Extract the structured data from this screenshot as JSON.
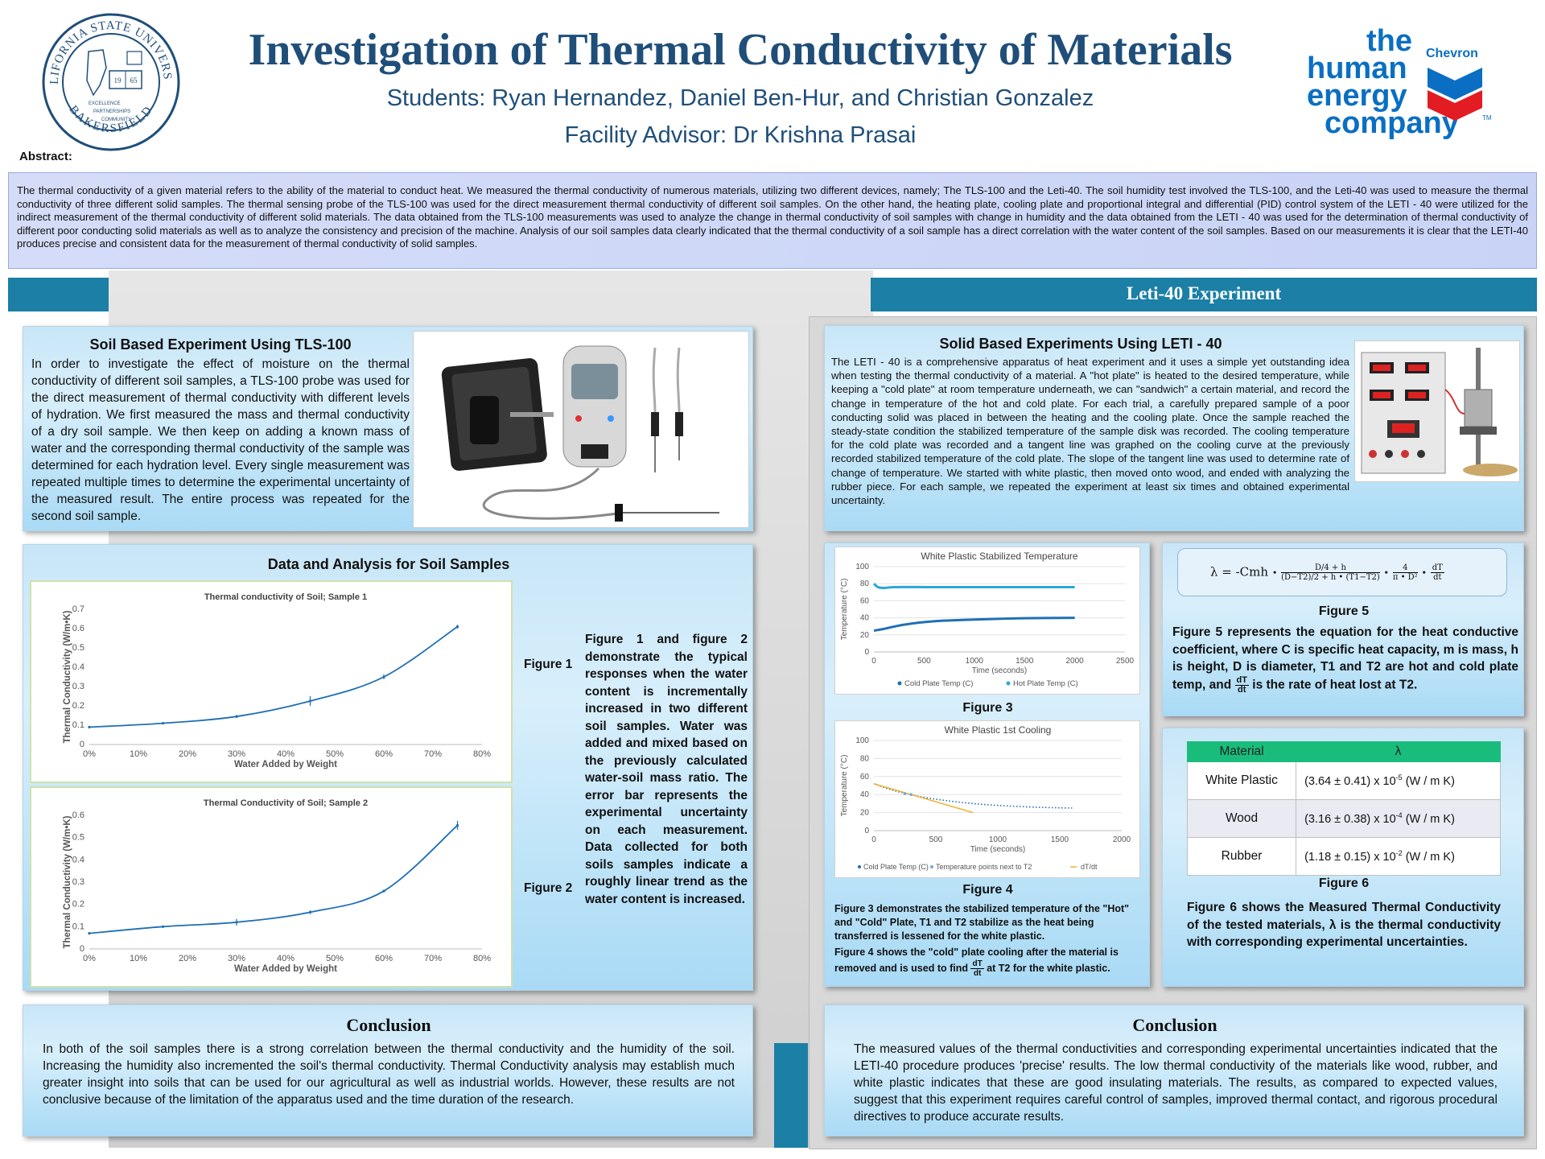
{
  "header": {
    "title": "Investigation of Thermal Conductivity of Materials",
    "students": "Students: Ryan Hernandez, Daniel Ben-Hur, and Christian Gonzalez",
    "advisor": "Facility Advisor: Dr Krishna Prasai",
    "logo_left": {
      "top": "CALIFORNIA STATE UNIVERSITY",
      "bottom": "BAKERSFIELD",
      "year1": "19",
      "year2": "65",
      "motto": [
        "EXCELLENCE",
        "PARTNERSHIPS",
        "COMMUNITY"
      ]
    },
    "logo_right": {
      "line1": "the",
      "line2": "human",
      "line3": "energy",
      "line4": "company",
      "brand": "Chevron",
      "tm": "TM"
    }
  },
  "abstract": {
    "label": "Abstract:",
    "text": "The thermal conductivity of a given material refers to the ability of the material to conduct heat. We measured the thermal conductivity of numerous materials, utilizing two different devices, namely; The TLS-100 and the Leti-40. The soil humidity test involved the TLS-100, and the Leti-40 was used to measure the thermal conductivity of three different solid samples. The thermal sensing probe of the TLS-100 was used for the direct measurement thermal conductivity of different soil samples. On the other hand, the heating plate, cooling plate and proportional integral and differential (PID) control system of the LETI - 40 were utilized for the indirect measurement of the thermal conductivity of different solid materials. The data obtained from the TLS-100 measurements was used to analyze the change in thermal conductivity of soil samples with change in humidity and the data obtained from the LETI - 40 was used for the determination of thermal conductivity of different poor conducting solid materials as well as to analyze the consistency and precision of the machine. Analysis of our soil samples data clearly indicated that the thermal conductivity of a soil sample has a direct correlation with the water content of the soil samples. Based on our measurements it is clear that the LETI-40 produces precise and consistent data for the measurement of thermal conductivity of solid samples."
  },
  "right_banner": "Leti-40 Experiment",
  "soil": {
    "title": "Soil Based Experiment Using TLS-100",
    "text": "In order to investigate the effect of moisture on the thermal conductivity of different soil samples, a TLS-100 probe was used for the direct measurement of thermal conductivity with different levels of hydration. We first measured the mass and thermal conductivity of a dry soil sample. We then keep on adding a known mass of water and the corresponding thermal conductivity of the sample was determined for each hydration level. Every single measurement was repeated multiple times to determine the experimental uncertainty of the measured result. The entire process was repeated for the second soil sample."
  },
  "soil_data": {
    "title": "Data and Analysis for Soil Samples",
    "fig1": "Figure 1",
    "fig2": "Figure 2",
    "description": "Figure 1 and figure 2 demonstrate the typical responses when the water content is incrementally increased in two different soil samples. Water was added and mixed based on the previously calculated water-soil mass ratio. The error bar represents the experimental uncertainty on each measurement. Data collected for both soils samples indicate a roughly linear trend as the water content is increased."
  },
  "leti": {
    "title": "Solid Based Experiments Using LETI - 40",
    "text": "The LETI - 40 is a comprehensive apparatus of heat experiment and it uses a simple yet outstanding idea when testing the thermal conductivity of a material. A \"hot plate\" is heated to the desired temperature, while keeping a \"cold plate\" at room temperature underneath, we can \"sandwich\" a certain material, and record the change in temperature of the hot and cold plate. For each trial, a carefully prepared sample of a poor conducting solid was placed in between the heating and the cooling plate. Once the sample reached the steady-state condition the stabilized temperature of the sample disk was recorded. The cooling temperature for the cold plate was recorded and a tangent line was graphed on the cooling curve at the previously recorded stabilized temperature of the cold plate. The slope of the tangent line was used to determine rate of change of temperature. We started with white plastic, then moved onto wood, and ended with analyzing the rubber piece. For each sample, we repeated the experiment at least six times and obtained experimental uncertainty."
  },
  "figs34": {
    "fig3": "Figure 3",
    "fig4": "Figure 4",
    "caption3": "Figure 3 demonstrates the stabilized temperature of the \"Hot\" and \"Cold\" Plate, T1 and T2 stabilize as the heat being transferred is lessened for the white plastic.",
    "caption4_a": "Figure 4 shows the \"cold\" plate cooling after the material is removed and is used to find",
    "caption4_b": "at T2 for the white plastic."
  },
  "fig5": {
    "label": "Figure 5",
    "equation_lead": "λ = -Cmh",
    "text_a": "Figure 5 represents the equation for the heat conductive coefficient, where C is specific heat capacity, m is mass, h is height, D is diameter, T1 and T2 are hot and cold plate temp, and",
    "text_b": "is the rate of heat lost at T2."
  },
  "fig6": {
    "label": "Figure 6",
    "headers": [
      "Material",
      "λ"
    ],
    "rows": [
      {
        "material": "White Plastic",
        "value": "(3.64 ± 0.41) x 10",
        "exp": "-5",
        "unit": " (W / m K)"
      },
      {
        "material": "Wood",
        "value": "(3.16 ± 0.38) x 10",
        "exp": "-4",
        "unit": " (W / m K)"
      },
      {
        "material": "Rubber",
        "value": "(1.18 ± 0.15) x 10",
        "exp": "-2",
        "unit": " (W / m K)"
      }
    ],
    "text": "Figure 6 shows the Measured Thermal Conductivity of the tested materials, λ is the thermal conductivity with corresponding experimental uncertainties."
  },
  "conclusion_left": {
    "title": "Conclusion",
    "text": "In both of the soil samples there is a strong correlation between the thermal conductivity and the humidity of the soil. Increasing the humidity also incremented the soil's thermal conductivity. Thermal Conductivity analysis may establish much greater insight into soils that can be used for our agricultural as well as industrial worlds. However, these results are not conclusive because of the limitation of the apparatus used and the time duration of the research."
  },
  "conclusion_right": {
    "title": "Conclusion",
    "text": "The measured values of the thermal conductivities and corresponding experimental uncertainties indicated that the LETI-40 procedure produces 'precise' results. The low thermal conductivity of the materials like wood, rubber, and white plastic indicates that these are good insulating materials. The results, as compared to expected values, suggest that this experiment requires careful control of samples, improved thermal contact, and rigorous procedural directives to produce accurate results."
  },
  "colors": {
    "title": "#1f4e79",
    "accent_bar": "#1b7fa6",
    "chevron_blue": "#0a6fc2",
    "chevron_red": "#e31b23",
    "table_header": "#1abc7c",
    "series_blue": "#1f6fb5",
    "series_teal": "#2aa8d8",
    "series_orange": "#f2b134"
  },
  "chart_data": [
    {
      "type": "line",
      "title": "Thermal conductivity of Soil; Sample 1",
      "xlabel": "Water Added by Weight",
      "ylabel": "Thermal Conductivity (W/m•K)",
      "xticks": [
        "0%",
        "10%",
        "20%",
        "30%",
        "40%",
        "50%",
        "60%",
        "70%",
        "80%"
      ],
      "yticks": [
        "0",
        "0.1",
        "0.2",
        "0.3",
        "0.4",
        "0.5",
        "0.6",
        "0.7"
      ],
      "xlim": [
        0,
        80
      ],
      "ylim": [
        0,
        0.7
      ],
      "x": [
        0,
        15,
        30,
        45,
        60,
        75
      ],
      "values": [
        0.09,
        0.11,
        0.145,
        0.225,
        0.35,
        0.61
      ],
      "errors": [
        0.005,
        0.005,
        0.008,
        0.025,
        0.012,
        0.01
      ]
    },
    {
      "type": "line",
      "title": "Thermal Conductivity of Soil; Sample 2",
      "xlabel": "Water Added by Weight",
      "ylabel": "Thermal Conductivity (W/m•K)",
      "xticks": [
        "0%",
        "10%",
        "20%",
        "30%",
        "40%",
        "50%",
        "60%",
        "70%",
        "80%"
      ],
      "yticks": [
        "0",
        "0.1",
        "0.2",
        "0.3",
        "0.4",
        "0.5",
        "0.6"
      ],
      "xlim": [
        0,
        80
      ],
      "ylim": [
        0,
        0.6
      ],
      "x": [
        0,
        15,
        30,
        45,
        60,
        75
      ],
      "values": [
        0.07,
        0.1,
        0.12,
        0.165,
        0.26,
        0.555
      ],
      "errors": [
        0.004,
        0.004,
        0.015,
        0.008,
        0.006,
        0.02
      ]
    },
    {
      "type": "line",
      "title": "White Plastic Stabilized Temperature",
      "xlabel": "Time (seconds)",
      "ylabel": "Temperature (°C)",
      "xticks": [
        "0",
        "500",
        "1000",
        "1500",
        "2000",
        "2500"
      ],
      "yticks": [
        "0",
        "20",
        "40",
        "60",
        "80",
        "100"
      ],
      "xlim": [
        0,
        2500
      ],
      "ylim": [
        0,
        100
      ],
      "legend": [
        "Cold Plate Temp (C)",
        "Hot Plate Temp (C)"
      ],
      "series": [
        {
          "name": "Cold Plate Temp (C)",
          "x": [
            0,
            100,
            300,
            600,
            1000,
            1500,
            2000
          ],
          "values": [
            25,
            27,
            32,
            36,
            38,
            39.5,
            40
          ]
        },
        {
          "name": "Hot Plate Temp (C)",
          "x": [
            0,
            40,
            100,
            200,
            500,
            1000,
            1500,
            2000
          ],
          "values": [
            80,
            76,
            75,
            76,
            76,
            76,
            76,
            76
          ]
        }
      ]
    },
    {
      "type": "line",
      "title": "White Plastic 1st Cooling",
      "xlabel": "Time (seconds)",
      "ylabel": "Temperature (°C)",
      "xticks": [
        "0",
        "500",
        "1000",
        "1500",
        "2000"
      ],
      "yticks": [
        "0",
        "20",
        "40",
        "60",
        "80",
        "100"
      ],
      "xlim": [
        0,
        2000
      ],
      "ylim": [
        0,
        100
      ],
      "legend": [
        "Cold Plate Temp (C)",
        "Temperature points next to T2",
        "dT/dt"
      ],
      "series": [
        {
          "name": "Cold Plate Temp (C)",
          "x": [
            0,
            100,
            200,
            300,
            400,
            600,
            800,
            1000,
            1300,
            1600
          ],
          "values": [
            52,
            47,
            43,
            40,
            37,
            33,
            30,
            28,
            26,
            25
          ]
        },
        {
          "name": "Temperature points next to T2",
          "x": [
            250,
            300
          ],
          "values": [
            41,
            40
          ]
        },
        {
          "name": "dT/dt",
          "x": [
            0,
            800
          ],
          "values": [
            52,
            20
          ]
        }
      ]
    }
  ]
}
